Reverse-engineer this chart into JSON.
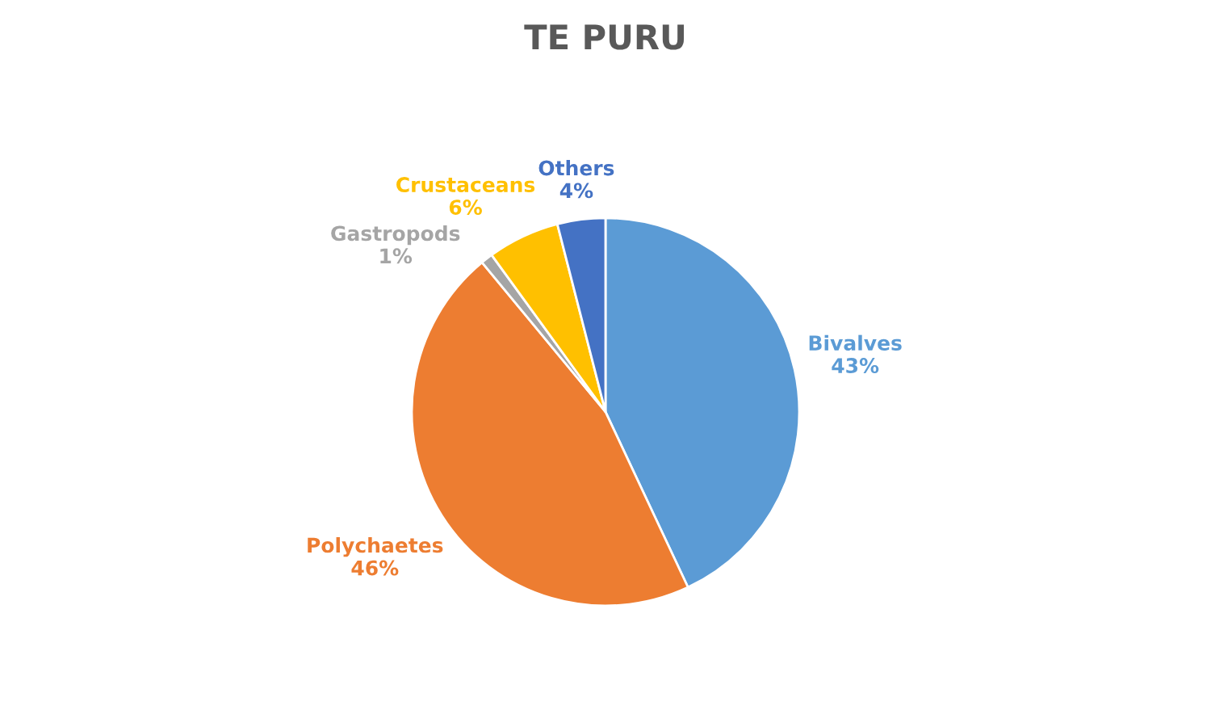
{
  "chart_data": {
    "type": "pie",
    "title": "TE PURU",
    "categories": [
      "Bivalves",
      "Polychaetes",
      "Gastropods",
      "Crustaceans",
      "Others"
    ],
    "values": [
      43,
      46,
      1,
      6,
      4
    ],
    "value_labels": [
      "43%",
      "46%",
      "1%",
      "6%",
      "4%"
    ],
    "colors": [
      "#5b9bd5",
      "#ed7d31",
      "#a5a5a5",
      "#ffc000",
      "#4472c4"
    ],
    "legend": false
  }
}
